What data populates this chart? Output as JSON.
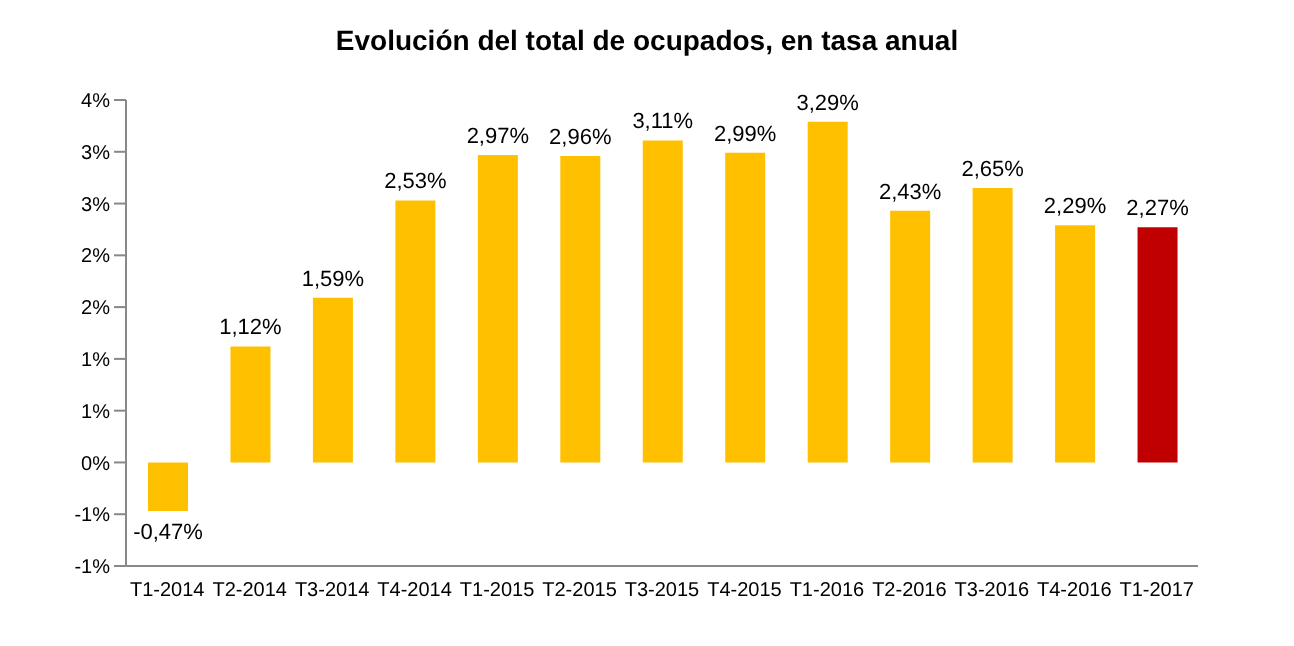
{
  "chart_data": {
    "type": "bar",
    "title": "Evolución del total de ocupados, en tasa anual",
    "categories": [
      "T1-2014",
      "T2-2014",
      "T3-2014",
      "T4-2014",
      "T1-2015",
      "T2-2015",
      "T3-2015",
      "T4-2015",
      "T1-2016",
      "T2-2016",
      "T3-2016",
      "T4-2016",
      "T1-2017"
    ],
    "values": [
      -0.47,
      1.12,
      1.59,
      2.53,
      2.97,
      2.96,
      3.11,
      2.99,
      3.29,
      2.43,
      2.65,
      2.29,
      2.27
    ],
    "value_labels": [
      "-0,47%",
      "1,12%",
      "1,59%",
      "2,53%",
      "2,97%",
      "2,96%",
      "3,11%",
      "2,99%",
      "3,29%",
      "2,43%",
      "2,65%",
      "2,29%",
      "2,27%"
    ],
    "colors": [
      "#ffc000",
      "#ffc000",
      "#ffc000",
      "#ffc000",
      "#ffc000",
      "#ffc000",
      "#ffc000",
      "#ffc000",
      "#ffc000",
      "#ffc000",
      "#ffc000",
      "#ffc000",
      "#c00000"
    ],
    "ylim": [
      -1,
      3.5
    ],
    "yticks": [
      {
        "value": -1,
        "label": "-1%"
      },
      {
        "value": -0.5,
        "label": "-1%"
      },
      {
        "value": 0,
        "label": "0%"
      },
      {
        "value": 0.5,
        "label": "1%"
      },
      {
        "value": 1,
        "label": "1%"
      },
      {
        "value": 1.5,
        "label": "2%"
      },
      {
        "value": 2,
        "label": "2%"
      },
      {
        "value": 2.5,
        "label": "3%"
      },
      {
        "value": 3,
        "label": "3%"
      },
      {
        "value": 3.5,
        "label": "4%"
      }
    ],
    "grid": false,
    "legend": false
  }
}
